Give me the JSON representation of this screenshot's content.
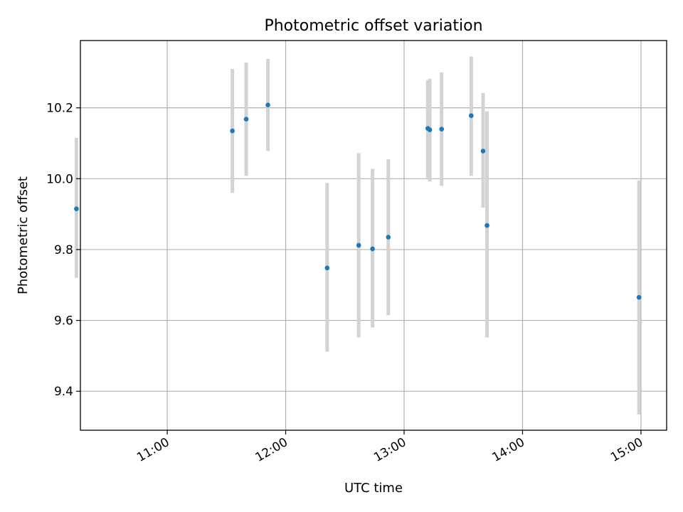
{
  "chart_data": {
    "type": "scatter",
    "title": "Photometric offset variation",
    "xlabel": "UTC time",
    "ylabel": "Photometric offset",
    "x_ticks": [
      "11:00",
      "12:00",
      "13:00",
      "14:00",
      "15:00"
    ],
    "y_ticks": [
      "9.4",
      "9.6",
      "9.8",
      "10.0",
      "10.2"
    ],
    "xlim": [
      "10:16",
      "15:13"
    ],
    "ylim": [
      9.29,
      10.39
    ],
    "grid": true,
    "point_color": "#1f77b4",
    "errorbar_color": "#d3d3d3",
    "points": [
      {
        "x": "10:14",
        "y": 9.915,
        "ylow": 9.72,
        "yhigh": 10.115
      },
      {
        "x": "11:33",
        "y": 10.135,
        "ylow": 9.96,
        "yhigh": 10.31
      },
      {
        "x": "11:40",
        "y": 10.168,
        "ylow": 10.008,
        "yhigh": 10.328
      },
      {
        "x": "11:51",
        "y": 10.208,
        "ylow": 10.078,
        "yhigh": 10.338
      },
      {
        "x": "12:21",
        "y": 9.748,
        "ylow": 9.512,
        "yhigh": 9.988
      },
      {
        "x": "12:37",
        "y": 9.812,
        "ylow": 9.552,
        "yhigh": 10.072
      },
      {
        "x": "12:44",
        "y": 9.802,
        "ylow": 9.58,
        "yhigh": 10.028
      },
      {
        "x": "12:52",
        "y": 9.835,
        "ylow": 9.615,
        "yhigh": 10.055
      },
      {
        "x": "13:12",
        "y": 10.142,
        "ylow": 10.002,
        "yhigh": 10.278
      },
      {
        "x": "13:13",
        "y": 10.138,
        "ylow": 9.992,
        "yhigh": 10.282
      },
      {
        "x": "13:19",
        "y": 10.14,
        "ylow": 9.98,
        "yhigh": 10.3
      },
      {
        "x": "13:34",
        "y": 10.178,
        "ylow": 10.008,
        "yhigh": 10.345
      },
      {
        "x": "13:40",
        "y": 10.078,
        "ylow": 9.918,
        "yhigh": 10.242
      },
      {
        "x": "13:42",
        "y": 9.868,
        "ylow": 9.552,
        "yhigh": 10.19
      },
      {
        "x": "14:59",
        "y": 9.665,
        "ylow": 9.335,
        "yhigh": 9.995
      }
    ]
  }
}
